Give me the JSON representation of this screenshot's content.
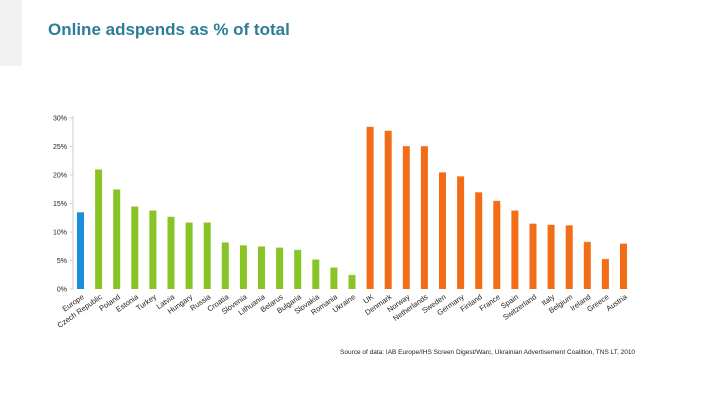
{
  "chart_data": {
    "type": "bar",
    "title": "Online adspends as % of total",
    "xlabel": "",
    "ylabel": "",
    "ylim": [
      0,
      30
    ],
    "yticks": [
      0,
      5,
      10,
      15,
      20,
      25,
      30
    ],
    "ytick_labels": [
      "0%",
      "5%",
      "10%",
      "15%",
      "20%",
      "25%",
      "30%"
    ],
    "grid": false,
    "categories": [
      "Europe",
      "Czech Republic",
      "Poland",
      "Estonia",
      "Turkey",
      "Latvia",
      "Hungary",
      "Russia",
      "Croatia",
      "Slovenia",
      "Lithuania",
      "Belarus",
      "Bulgaria",
      "Slovakia",
      "Romania",
      "Ukraine",
      "UK",
      "Denmark",
      "Norway",
      "Netherlands",
      "Sweden",
      "Germany",
      "Finland",
      "France",
      "Spain",
      "Switzerland",
      "Italy",
      "Belgium",
      "Ireland",
      "Greece",
      "Austria"
    ],
    "values": [
      13.5,
      21.0,
      17.5,
      14.5,
      13.8,
      12.7,
      11.7,
      11.7,
      8.2,
      7.7,
      7.5,
      7.3,
      6.9,
      5.2,
      3.8,
      2.5,
      28.5,
      27.8,
      25.1,
      25.1,
      20.5,
      19.8,
      17.0,
      15.5,
      13.8,
      11.5,
      11.3,
      11.2,
      8.3,
      5.3,
      8.0
    ],
    "groups": [
      "Europe",
      "CEE",
      "CEE",
      "CEE",
      "CEE",
      "CEE",
      "CEE",
      "CEE",
      "CEE",
      "CEE",
      "CEE",
      "CEE",
      "CEE",
      "CEE",
      "CEE",
      "CEE",
      "Western",
      "Western",
      "Western",
      "Western",
      "Western",
      "Western",
      "Western",
      "Western",
      "Western",
      "Western",
      "Western",
      "Western",
      "Western",
      "Western",
      "Western"
    ],
    "group_colors": {
      "Europe": "#1b8fd9",
      "CEE": "#88c425",
      "Western": "#f26d16"
    },
    "source": "Source of data: IAB Europe/IHS Screen Digest/Warc, Ukrainian Advertisement Coalition, TNS LT, 2010"
  }
}
